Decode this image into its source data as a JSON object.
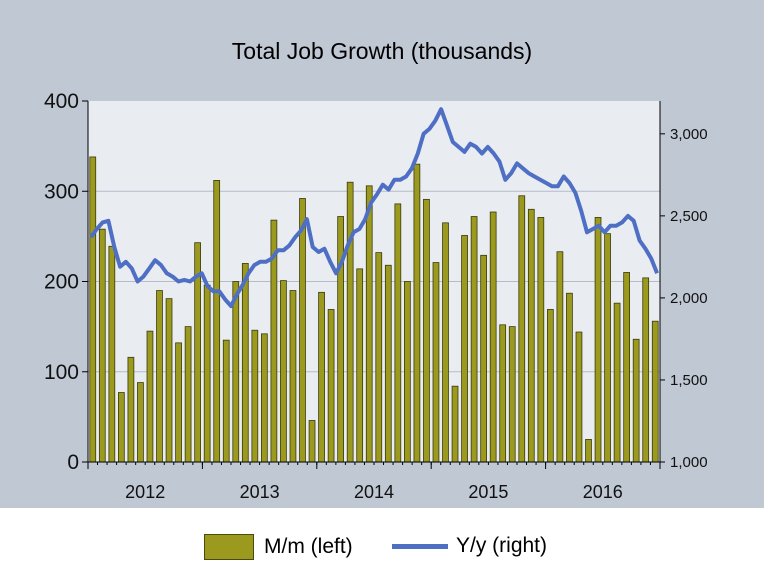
{
  "chart_data": {
    "type": "bar",
    "title": "Total Job Growth (thousands)",
    "x_tick_labels": [
      "2012",
      "2013",
      "2014",
      "2015",
      "2016"
    ],
    "left_axis": {
      "ylim": [
        0,
        400
      ],
      "ticks": [
        "0",
        "100",
        "200",
        "300",
        "400"
      ]
    },
    "right_axis": {
      "ylim": [
        1000,
        3200
      ],
      "ticks": [
        "1,000",
        "1,500",
        "2,000",
        "2,500",
        "3,000"
      ]
    },
    "grid": true,
    "legend_position": "bottom",
    "series": [
      {
        "name": "M/m (left)",
        "type": "bar",
        "axis": "left",
        "color": "#9c9a1e",
        "values": [
          338,
          258,
          239,
          77,
          116,
          88,
          145,
          190,
          181,
          132,
          150,
          243,
          196,
          312,
          135,
          200,
          220,
          146,
          142,
          268,
          201,
          190,
          292,
          46,
          188,
          169,
          272,
          310,
          214,
          306,
          232,
          218,
          286,
          200,
          330,
          291,
          221,
          265,
          84,
          251,
          272,
          229,
          277,
          152,
          150,
          295,
          280,
          271,
          169,
          233,
          187,
          144,
          25,
          271,
          253,
          176,
          210,
          136,
          204,
          156
        ]
      },
      {
        "name": "Y/y (right)",
        "type": "line",
        "axis": "right",
        "color": "#4f6fc4",
        "values": [
          2370,
          2420,
          2460,
          2470,
          2310,
          2190,
          2220,
          2180,
          2100,
          2130,
          2180,
          2230,
          2200,
          2150,
          2130,
          2100,
          2110,
          2100,
          2130,
          2150,
          2070,
          2040,
          2040,
          1990,
          1950,
          2020,
          2080,
          2150,
          2200,
          2220,
          2220,
          2240,
          2290,
          2290,
          2320,
          2370,
          2410,
          2480,
          2310,
          2280,
          2300,
          2220,
          2150,
          2220,
          2320,
          2400,
          2420,
          2480,
          2580,
          2630,
          2690,
          2660,
          2720,
          2720,
          2740,
          2790,
          2880,
          3000,
          3030,
          3080,
          3150,
          3050,
          2950,
          2920,
          2890,
          2940,
          2920,
          2880,
          2920,
          2880,
          2830,
          2720,
          2760,
          2820,
          2790,
          2760,
          2740,
          2720,
          2700,
          2680,
          2680,
          2740,
          2700,
          2640,
          2530,
          2400,
          2420,
          2440,
          2400,
          2440,
          2440,
          2460,
          2500,
          2470,
          2350,
          2300,
          2240,
          2150
        ]
      }
    ]
  }
}
